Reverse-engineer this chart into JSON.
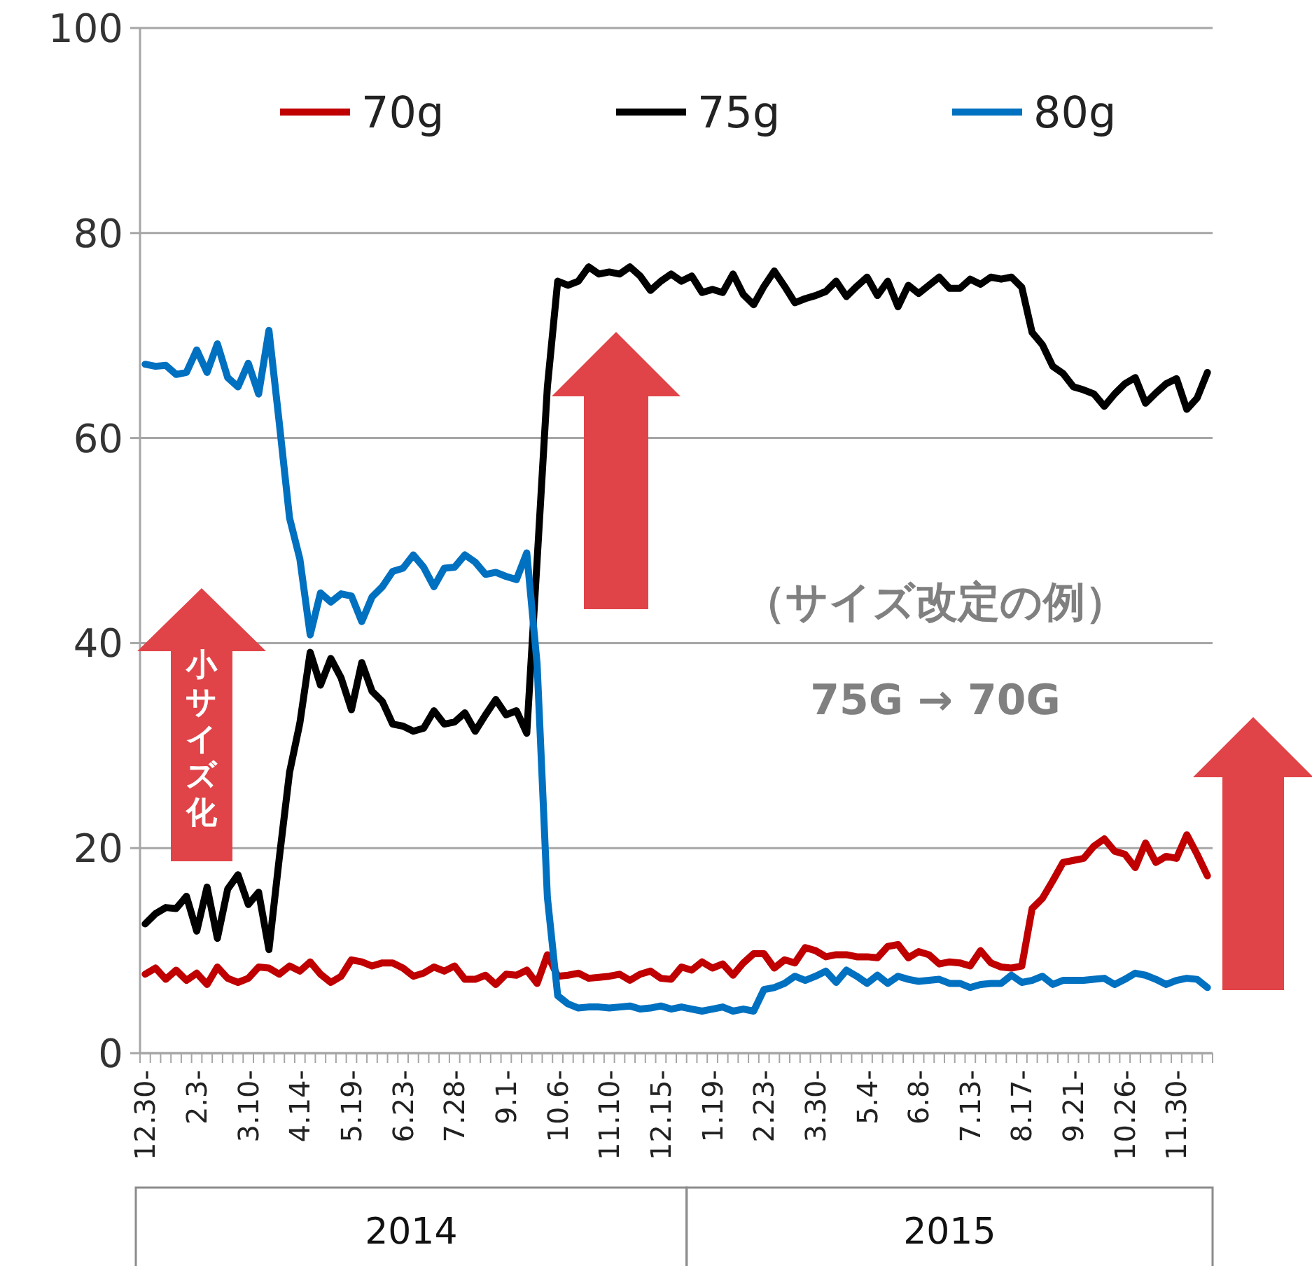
{
  "chart_data": {
    "type": "line",
    "categories": [
      "12.30-",
      null,
      null,
      null,
      null,
      "2.3-",
      null,
      null,
      null,
      null,
      "3.10-",
      null,
      null,
      null,
      null,
      "4.14-",
      null,
      null,
      null,
      null,
      "5.19-",
      null,
      null,
      null,
      null,
      "6.23-",
      null,
      null,
      null,
      null,
      "7.28-",
      null,
      null,
      null,
      null,
      "9.1-",
      null,
      null,
      null,
      null,
      "10.6-",
      null,
      null,
      null,
      null,
      "11.10-",
      null,
      null,
      null,
      null,
      "12.15-",
      null,
      null,
      null,
      null,
      "1.19-",
      null,
      null,
      null,
      null,
      "2.23-",
      null,
      null,
      null,
      null,
      "3.30-",
      null,
      null,
      null,
      null,
      "5.4-",
      null,
      null,
      null,
      null,
      "6.8-",
      null,
      null,
      null,
      null,
      "7.13-",
      null,
      null,
      null,
      null,
      "8.17-",
      null,
      null,
      null,
      null,
      "9.21-",
      null,
      null,
      null,
      null,
      "10.26-",
      null,
      null,
      null,
      null,
      "11.30-",
      null,
      null,
      null
    ],
    "series": [
      {
        "name": "70g",
        "color": "#c00000",
        "values": [
          7.7,
          8.3,
          7.2,
          8.1,
          7.1,
          7.8,
          6.7,
          8.4,
          7.3,
          6.9,
          7.3,
          8.4,
          8.3,
          7.7,
          8.5,
          8,
          8.9,
          7.7,
          6.9,
          7.5,
          9.1,
          8.9,
          8.5,
          8.8,
          8.8,
          8.3,
          7.5,
          7.8,
          8.4,
          8,
          8.5,
          7.2,
          7.2,
          7.6,
          6.7,
          7.7,
          7.6,
          8.1,
          6.8,
          9.6,
          7.5,
          7.6,
          7.8,
          7.3,
          7.4,
          7.5,
          7.7,
          7.1,
          7.7,
          8,
          7.3,
          7.2,
          8.4,
          8.1,
          8.9,
          8.3,
          8.7,
          7.6,
          8.8,
          9.7,
          9.7,
          8.3,
          9.1,
          8.8,
          10.3,
          10,
          9.4,
          9.6,
          9.6,
          9.4,
          9.4,
          9.3,
          10.4,
          10.6,
          9.3,
          9.9,
          9.6,
          8.7,
          8.9,
          8.8,
          8.5,
          10,
          8.8,
          8.4,
          8.3,
          8.5,
          14.1,
          15.1,
          16.8,
          18.6,
          18.8,
          19,
          20.2,
          20.9,
          19.7,
          19.4,
          18.1,
          20.5,
          18.6,
          19.2,
          19,
          21.3,
          19.4,
          17.3
        ]
      },
      {
        "name": "75g",
        "color": "#000000",
        "values": [
          12.6,
          13.6,
          14.2,
          14.1,
          15.3,
          11.9,
          16.2,
          11.2,
          16,
          17.4,
          14.5,
          15.7,
          10.1,
          19,
          27.4,
          32.2,
          39.1,
          35.9,
          38.5,
          36.6,
          33.5,
          38.1,
          35.3,
          34.3,
          32.1,
          31.9,
          31.4,
          31.7,
          33.4,
          32.1,
          32.3,
          33.2,
          31.4,
          33,
          34.5,
          33,
          33.4,
          31.2,
          48,
          65,
          75.3,
          74.9,
          75.3,
          76.7,
          76,
          76.2,
          76,
          76.7,
          75.8,
          74.4,
          75.3,
          76,
          75.3,
          75.8,
          74.2,
          74.5,
          74.2,
          76,
          74,
          73,
          74.8,
          76.3,
          74.8,
          73.2,
          73.6,
          73.9,
          74.3,
          75.3,
          73.8,
          74.8,
          75.7,
          73.9,
          75.3,
          72.8,
          74.9,
          74.1,
          74.9,
          75.7,
          74.6,
          74.6,
          75.5,
          75,
          75.7,
          75.5,
          75.7,
          74.7,
          70.3,
          69.1,
          67,
          66.3,
          65,
          64.7,
          64.3,
          63.1,
          64.3,
          65.3,
          65.9,
          63.4,
          64.4,
          65.3,
          65.8,
          62.8,
          63.9,
          66.4
        ]
      },
      {
        "name": "80g",
        "color": "#0070c0",
        "values": [
          67.2,
          67,
          67.1,
          66.2,
          66.4,
          68.6,
          66.4,
          69.2,
          65.9,
          65,
          67.3,
          64.3,
          70.5,
          61.5,
          52.2,
          48.2,
          40.8,
          44.9,
          44,
          44.8,
          44.6,
          42.1,
          44.5,
          45.5,
          47,
          47.3,
          48.6,
          47.4,
          45.5,
          47.3,
          47.4,
          48.6,
          47.9,
          46.7,
          46.9,
          46.5,
          46.2,
          48.8,
          38,
          15.2,
          5.6,
          4.8,
          4.4,
          4.5,
          4.5,
          4.4,
          4.5,
          4.6,
          4.3,
          4.4,
          4.6,
          4.3,
          4.5,
          4.3,
          4.1,
          4.3,
          4.5,
          4.1,
          4.3,
          4.1,
          6.2,
          6.4,
          6.8,
          7.5,
          7.1,
          7.5,
          8,
          6.9,
          8.1,
          7.5,
          6.8,
          7.6,
          6.8,
          7.5,
          7.2,
          7,
          7.1,
          7.2,
          6.8,
          6.8,
          6.4,
          6.7,
          6.8,
          6.8,
          7.6,
          6.9,
          7.1,
          7.5,
          6.7,
          7.1,
          7.1,
          7.1,
          7.2,
          7.3,
          6.7,
          7.2,
          7.8,
          7.6,
          7.2,
          6.7,
          7.1,
          7.3,
          7.2,
          6.4
        ]
      }
    ],
    "ylim": [
      0,
      100
    ],
    "yticks": [
      0,
      20,
      40,
      60,
      80,
      100
    ],
    "grid": "y",
    "legend": "top",
    "annotations": [
      "小サイズ化",
      "（サイズ改定の例）",
      "75G → 70G",
      "2014",
      "2015"
    ]
  }
}
